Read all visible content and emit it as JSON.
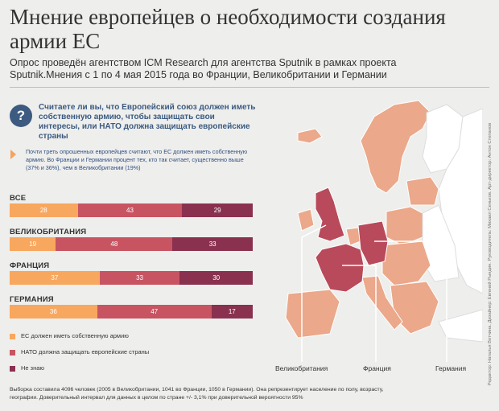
{
  "title": "Мнение европейцев о необходимости создания армии ЕС",
  "subtitle": "Опрос проведён агентством ICM Research для агентства Sputnik в рамках проекта Sputnik.Мнения с 1 по 4 мая 2015 года во Франции, Великобритании и Германии",
  "question": {
    "icon": "?",
    "text": "Считаете ли вы, что Европейский союз должен иметь собственную армию, чтобы защищать свои интересы, или НАТО должна защищать европейские страны"
  },
  "note": "Почти треть опрошенных европейцев считают, что ЕС должен иметь собственную армию. Во Франции и Германии процент тех, кто так считает, существенно выше (37% и 36%), чем в Великобритании (19%)",
  "colors": {
    "own_army": "#f8a75f",
    "nato": "#c85462",
    "dont_know": "#8a3150",
    "map_highlight": "#b84a5b",
    "map_base": "#eba88a",
    "map_other": "#ffffff",
    "question_circle": "#3d5a80"
  },
  "chart_data": {
    "type": "bar",
    "stacked": true,
    "orientation": "horizontal",
    "categories": [
      "ВСЕ",
      "ВЕЛИКОБРИТАНИЯ",
      "ФРАНЦИЯ",
      "ГЕРМАНИЯ"
    ],
    "series": [
      {
        "name": "ЕС должен иметь собственную армию",
        "values": [
          28,
          19,
          37,
          36
        ]
      },
      {
        "name": "НАТО должна защищать европейские страны",
        "values": [
          43,
          48,
          33,
          47
        ]
      },
      {
        "name": "Не знаю",
        "values": [
          29,
          33,
          30,
          17
        ]
      }
    ],
    "legend_position": "bottom-left"
  },
  "map": {
    "labels": [
      "Великобритания",
      "Франция",
      "Германия"
    ]
  },
  "footnote": "Выборка составила 4096 человек (2005 в Великобритании, 1041 во Франции, 1050 в Германии). Она репрезентирует население по полу, возрасту, географии. Доверительный интервал для данных в целом по стране +/- 3,1% при доверительной вероятности 95%",
  "credit": "Редактор: Наталья Ветчина. Дизайнер: Евгений Рындин. Руководитель: Михаил Сеньков. Арт-директор: Антон Степанов"
}
